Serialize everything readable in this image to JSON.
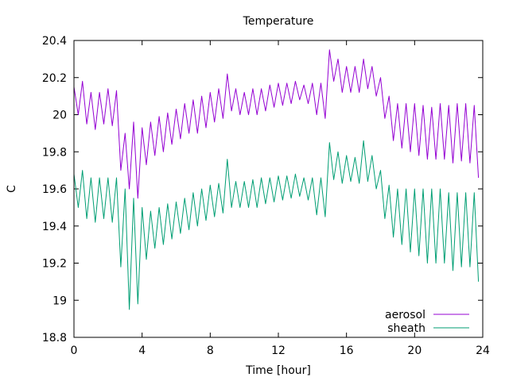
{
  "chart_data": {
    "type": "line",
    "title": "Temperature",
    "xlabel": "Time [hour]",
    "ylabel": "C",
    "xlim": [
      0,
      24
    ],
    "ylim": [
      18.8,
      20.4
    ],
    "xticks": [
      0,
      4,
      8,
      12,
      16,
      20,
      24
    ],
    "xtick_labels": [
      "0",
      "4",
      "8",
      "12",
      "16",
      "20",
      "24"
    ],
    "yticks": [
      18.8,
      19,
      19.2,
      19.4,
      19.6,
      19.8,
      20,
      20.2,
      20.4
    ],
    "ytick_labels": [
      "18.8",
      "19",
      "19.2",
      "19.4",
      "19.6",
      "19.8",
      "20",
      "20.2",
      "20.4"
    ],
    "grid": false,
    "legend_position": "bottom-right",
    "series": [
      {
        "name": "aerosol",
        "color": "#9400d3",
        "x": [
          0.0,
          0.25,
          0.5,
          0.75,
          1.0,
          1.25,
          1.5,
          1.75,
          2.0,
          2.25,
          2.5,
          2.75,
          3.0,
          3.25,
          3.5,
          3.75,
          4.0,
          4.25,
          4.5,
          4.75,
          5.0,
          5.25,
          5.5,
          5.75,
          6.0,
          6.25,
          6.5,
          6.75,
          7.0,
          7.25,
          7.5,
          7.75,
          8.0,
          8.25,
          8.5,
          8.75,
          9.0,
          9.25,
          9.5,
          9.75,
          10.0,
          10.25,
          10.5,
          10.75,
          11.0,
          11.25,
          11.5,
          11.75,
          12.0,
          12.25,
          12.5,
          12.75,
          13.0,
          13.25,
          13.5,
          13.75,
          14.0,
          14.25,
          14.5,
          14.75,
          15.0,
          15.25,
          15.5,
          15.75,
          16.0,
          16.25,
          16.5,
          16.75,
          17.0,
          17.25,
          17.5,
          17.75,
          18.0,
          18.25,
          18.5,
          18.75,
          19.0,
          19.25,
          19.5,
          19.75,
          20.0,
          20.25,
          20.5,
          20.75,
          21.0,
          21.25,
          21.5,
          21.75,
          22.0,
          22.25,
          22.5,
          22.75,
          23.0,
          23.25,
          23.5,
          23.75
        ],
        "values": [
          20.15,
          20.0,
          20.18,
          19.95,
          20.12,
          19.92,
          20.12,
          19.95,
          20.14,
          19.94,
          20.13,
          19.7,
          19.9,
          19.6,
          19.96,
          19.55,
          19.93,
          19.73,
          19.96,
          19.78,
          19.99,
          19.8,
          20.01,
          19.84,
          20.03,
          19.87,
          20.06,
          19.9,
          20.08,
          19.9,
          20.1,
          19.93,
          20.12,
          19.96,
          20.14,
          19.98,
          20.22,
          20.02,
          20.14,
          20.0,
          20.12,
          20.0,
          20.14,
          20.0,
          20.14,
          20.02,
          20.16,
          20.04,
          20.17,
          20.05,
          20.17,
          20.06,
          20.18,
          20.08,
          20.16,
          20.06,
          20.17,
          20.0,
          20.17,
          19.98,
          20.35,
          20.18,
          20.3,
          20.12,
          20.26,
          20.12,
          20.26,
          20.12,
          20.3,
          20.14,
          20.26,
          20.1,
          20.2,
          19.98,
          20.1,
          19.86,
          20.06,
          19.82,
          20.06,
          19.8,
          20.06,
          19.78,
          20.05,
          19.76,
          20.04,
          19.76,
          20.06,
          19.76,
          20.05,
          19.74,
          20.06,
          19.75,
          20.06,
          19.74,
          20.05,
          19.66
        ]
      },
      {
        "name": "sheath",
        "color": "#009e73",
        "x": [
          0.0,
          0.25,
          0.5,
          0.75,
          1.0,
          1.25,
          1.5,
          1.75,
          2.0,
          2.25,
          2.5,
          2.75,
          3.0,
          3.25,
          3.5,
          3.75,
          4.0,
          4.25,
          4.5,
          4.75,
          5.0,
          5.25,
          5.5,
          5.75,
          6.0,
          6.25,
          6.5,
          6.75,
          7.0,
          7.25,
          7.5,
          7.75,
          8.0,
          8.25,
          8.5,
          8.75,
          9.0,
          9.25,
          9.5,
          9.75,
          10.0,
          10.25,
          10.5,
          10.75,
          11.0,
          11.25,
          11.5,
          11.75,
          12.0,
          12.25,
          12.5,
          12.75,
          13.0,
          13.25,
          13.5,
          13.75,
          14.0,
          14.25,
          14.5,
          14.75,
          15.0,
          15.25,
          15.5,
          15.75,
          16.0,
          16.25,
          16.5,
          16.75,
          17.0,
          17.25,
          17.5,
          17.75,
          18.0,
          18.25,
          18.5,
          18.75,
          19.0,
          19.25,
          19.5,
          19.75,
          20.0,
          20.25,
          20.5,
          20.75,
          21.0,
          21.25,
          21.5,
          21.75,
          22.0,
          22.25,
          22.5,
          22.75,
          23.0,
          23.25,
          23.5,
          23.75
        ],
        "values": [
          19.68,
          19.5,
          19.7,
          19.44,
          19.66,
          19.42,
          19.66,
          19.44,
          19.66,
          19.42,
          19.66,
          19.18,
          19.6,
          18.95,
          19.55,
          18.98,
          19.5,
          19.22,
          19.48,
          19.28,
          19.5,
          19.3,
          19.52,
          19.33,
          19.53,
          19.36,
          19.55,
          19.38,
          19.58,
          19.4,
          19.6,
          19.43,
          19.62,
          19.45,
          19.63,
          19.47,
          19.76,
          19.5,
          19.64,
          19.5,
          19.64,
          19.5,
          19.65,
          19.5,
          19.66,
          19.52,
          19.66,
          19.53,
          19.67,
          19.54,
          19.67,
          19.55,
          19.68,
          19.56,
          19.66,
          19.54,
          19.66,
          19.46,
          19.66,
          19.45,
          19.85,
          19.65,
          19.8,
          19.63,
          19.78,
          19.64,
          19.77,
          19.63,
          19.86,
          19.64,
          19.78,
          19.6,
          19.7,
          19.44,
          19.62,
          19.34,
          19.6,
          19.3,
          19.6,
          19.26,
          19.6,
          19.24,
          19.6,
          19.2,
          19.6,
          19.2,
          19.6,
          19.2,
          19.58,
          19.16,
          19.58,
          19.18,
          19.58,
          19.18,
          19.58,
          19.1
        ]
      }
    ]
  }
}
